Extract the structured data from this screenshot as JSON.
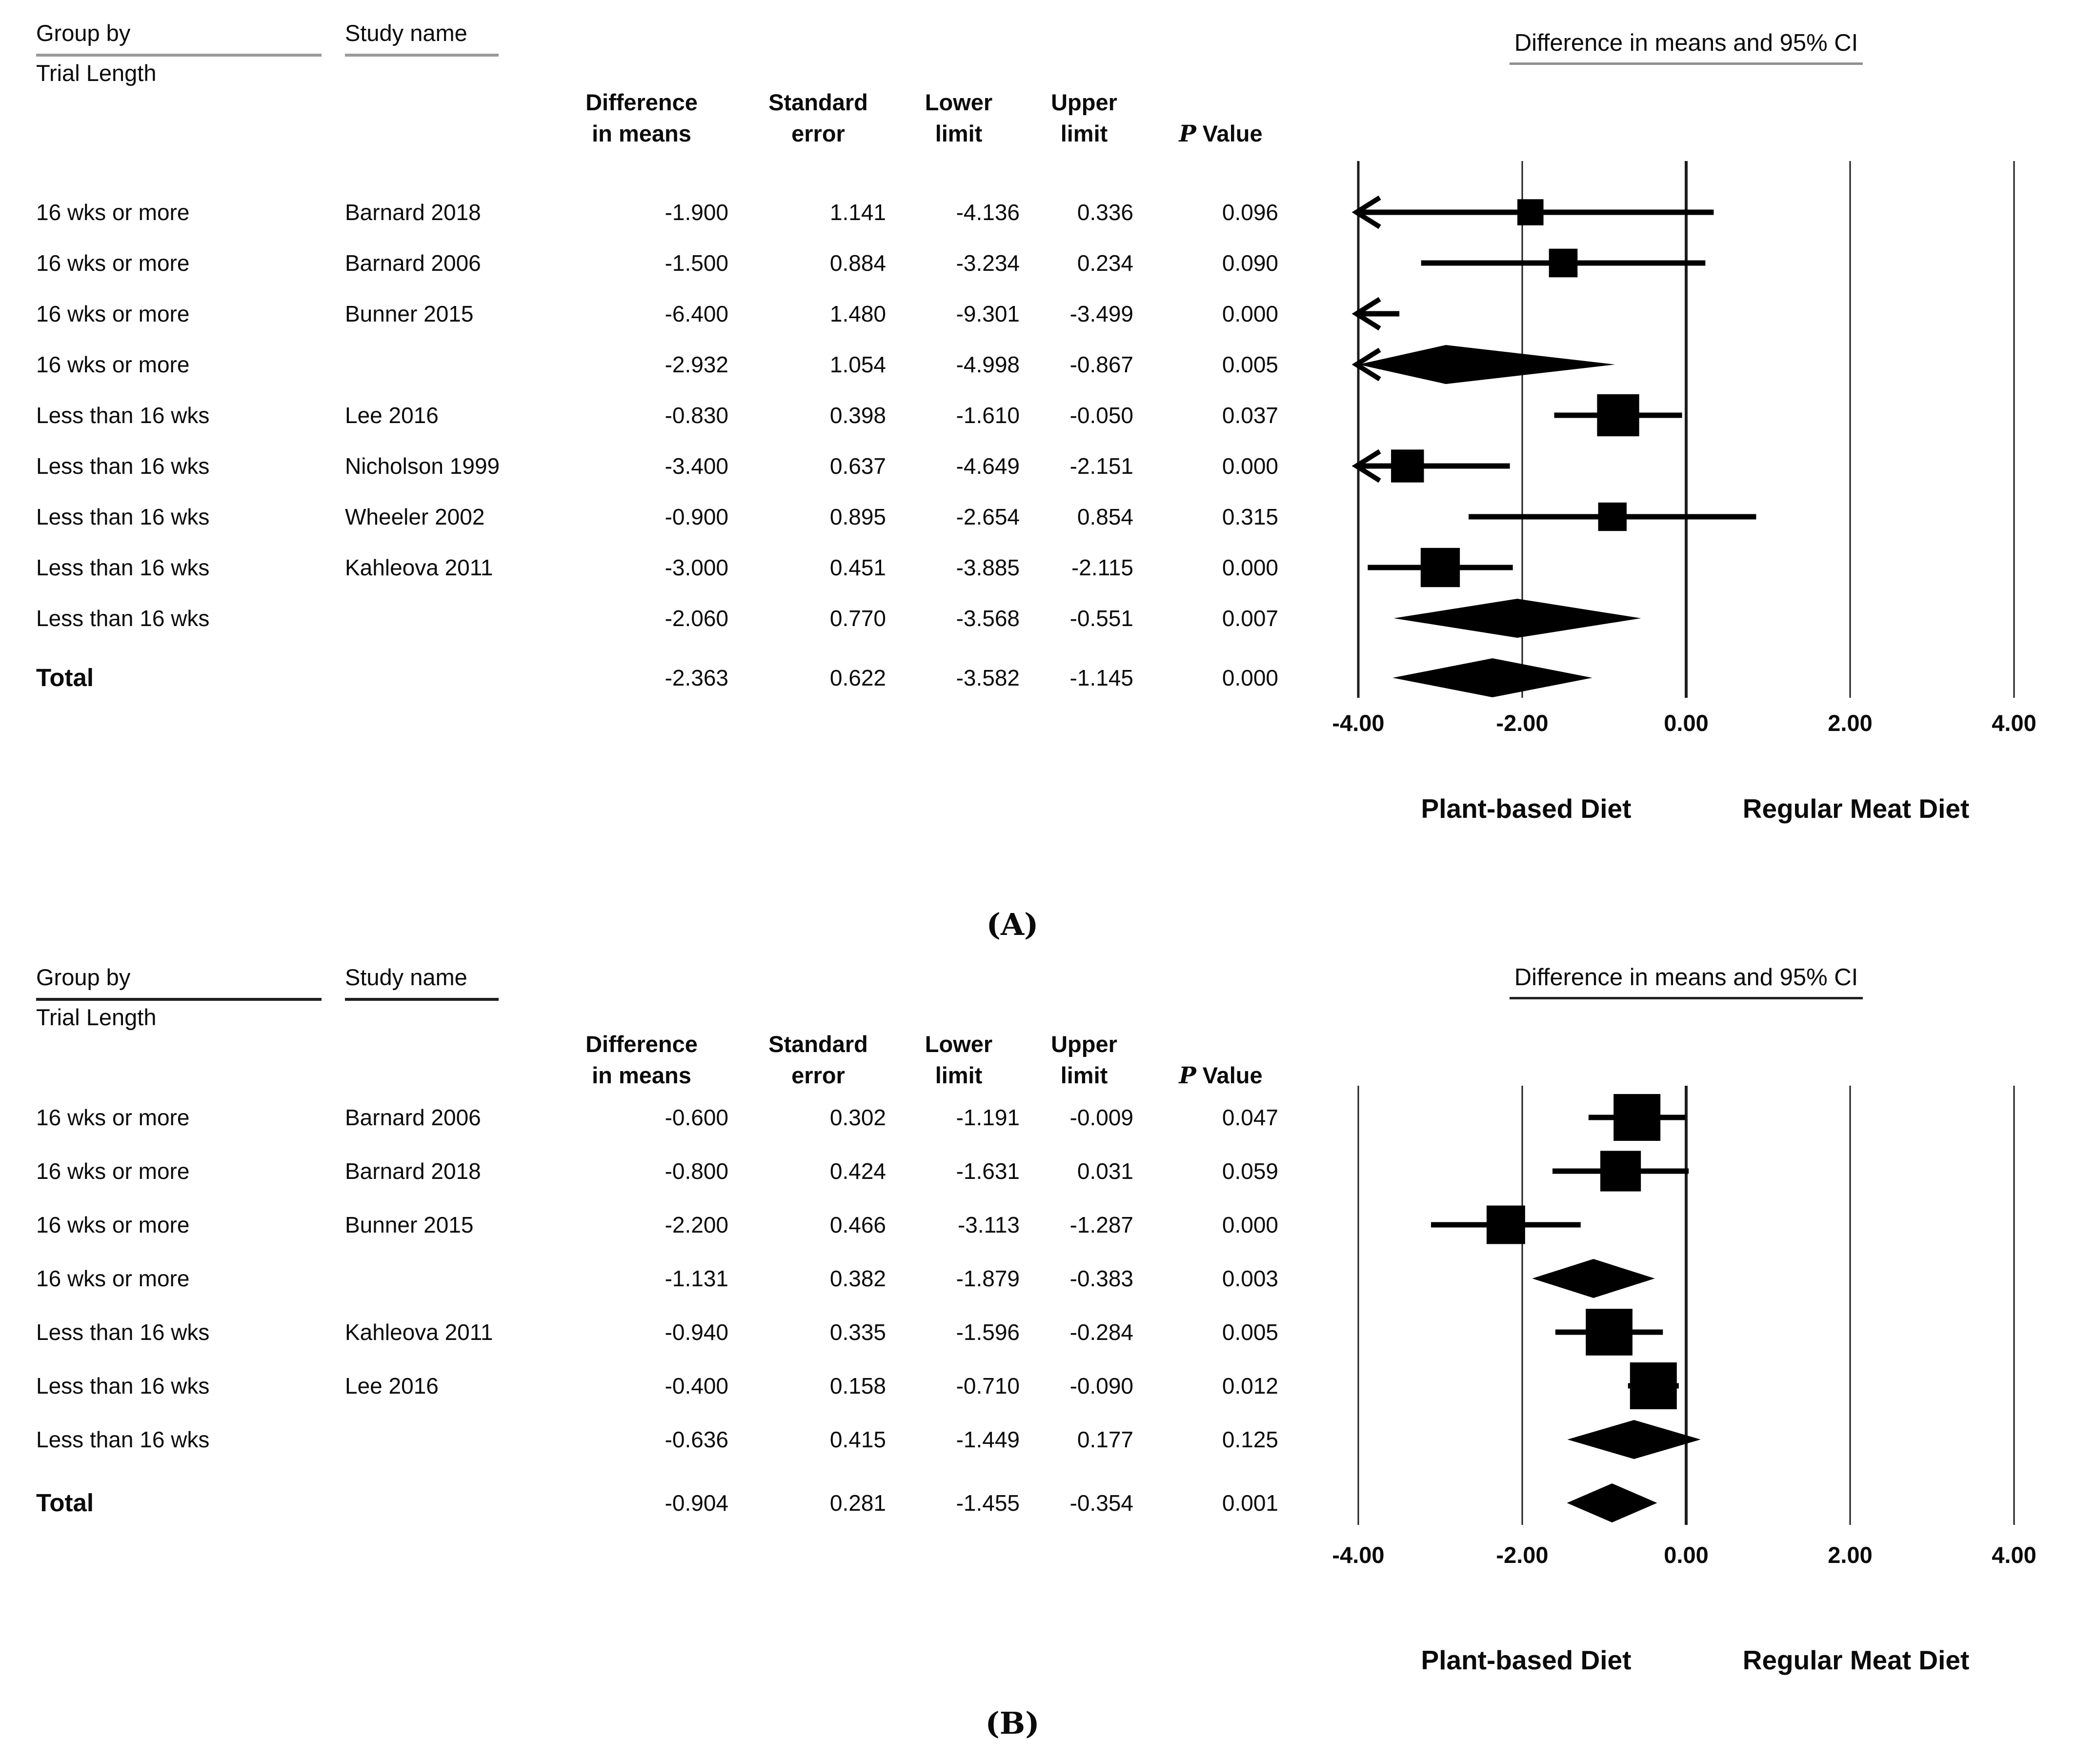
{
  "chart_data": [
    {
      "type": "forest",
      "panel_caption": "(A)",
      "group_header_line1": "Group by",
      "group_header_line2": "Trial Length",
      "study_header": "Study name",
      "value_headers": [
        {
          "line1": "Difference",
          "line2": "in means"
        },
        {
          "line1": "Standard",
          "line2": "error"
        },
        {
          "line1": "Lower",
          "line2": "limit"
        },
        {
          "line1": "Upper",
          "line2": "limit"
        },
        {
          "line1": "",
          "p_symbol": "P",
          "line2": "Value"
        }
      ],
      "plot_title": "Difference in means and 95% CI",
      "x_ticks": [
        "-4.00",
        "-2.00",
        "0.00",
        "2.00",
        "4.00"
      ],
      "x_tick_values": [
        -4,
        -2,
        0,
        2,
        4
      ],
      "x_range": [
        -4,
        4
      ],
      "grid": "vertical-lines",
      "legend_position": "none",
      "direction_labels": {
        "left": "Plant-based Diet",
        "right": "Regular Meat Diet"
      },
      "rows": [
        {
          "group": "16 wks or more",
          "study": "Barnard 2018",
          "kind": "study",
          "diff": "-1.900",
          "se": "1.141",
          "lower": "-4.136",
          "upper": "0.336",
          "p": "0.096"
        },
        {
          "group": "16 wks or more",
          "study": "Barnard 2006",
          "kind": "study",
          "diff": "-1.500",
          "se": "0.884",
          "lower": "-3.234",
          "upper": "0.234",
          "p": "0.090"
        },
        {
          "group": "16 wks or more",
          "study": "Bunner 2015",
          "kind": "study",
          "diff": "-6.400",
          "se": "1.480",
          "lower": "-9.301",
          "upper": "-3.499",
          "p": "0.000"
        },
        {
          "group": "16 wks or more",
          "study": "",
          "kind": "summary",
          "diff": "-2.932",
          "se": "1.054",
          "lower": "-4.998",
          "upper": "-0.867",
          "p": "0.005"
        },
        {
          "group": "Less than 16 wks",
          "study": "Lee 2016",
          "kind": "study",
          "diff": "-0.830",
          "se": "0.398",
          "lower": "-1.610",
          "upper": "-0.050",
          "p": "0.037"
        },
        {
          "group": "Less than 16 wks",
          "study": "Nicholson 1999",
          "kind": "study",
          "diff": "-3.400",
          "se": "0.637",
          "lower": "-4.649",
          "upper": "-2.151",
          "p": "0.000"
        },
        {
          "group": "Less than 16 wks",
          "study": "Wheeler 2002",
          "kind": "study",
          "diff": "-0.900",
          "se": "0.895",
          "lower": "-2.654",
          "upper": "0.854",
          "p": "0.315"
        },
        {
          "group": "Less than 16 wks",
          "study": "Kahleova 2011",
          "kind": "study",
          "diff": "-3.000",
          "se": "0.451",
          "lower": "-3.885",
          "upper": "-2.115",
          "p": "0.000"
        },
        {
          "group": "Less than 16 wks",
          "study": "",
          "kind": "summary",
          "diff": "-2.060",
          "se": "0.770",
          "lower": "-3.568",
          "upper": "-0.551",
          "p": "0.007"
        },
        {
          "group": "Total",
          "study": "",
          "kind": "total",
          "diff": "-2.363",
          "se": "0.622",
          "lower": "-3.582",
          "upper": "-1.145",
          "p": "0.000"
        }
      ]
    },
    {
      "type": "forest",
      "panel_caption": "(B)",
      "group_header_line1": "Group by",
      "group_header_line2": "Trial Length",
      "study_header": "Study name",
      "value_headers": [
        {
          "line1": "Difference",
          "line2": "in means"
        },
        {
          "line1": "Standard",
          "line2": "error"
        },
        {
          "line1": "Lower",
          "line2": "limit"
        },
        {
          "line1": "Upper",
          "line2": "limit"
        },
        {
          "line1": "",
          "p_symbol": "P",
          "line2": "Value"
        }
      ],
      "plot_title": "Difference in means and 95% CI",
      "x_ticks": [
        "-4.00",
        "-2.00",
        "0.00",
        "2.00",
        "4.00"
      ],
      "x_tick_values": [
        -4,
        -2,
        0,
        2,
        4
      ],
      "x_range": [
        -4,
        4
      ],
      "grid": "vertical-lines",
      "legend_position": "none",
      "direction_labels": {
        "left": "Plant-based Diet",
        "right": "Regular Meat Diet"
      },
      "rows": [
        {
          "group": "16 wks or more",
          "study": "Barnard 2006",
          "kind": "study",
          "diff": "-0.600",
          "se": "0.302",
          "lower": "-1.191",
          "upper": "-0.009",
          "p": "0.047"
        },
        {
          "group": "16 wks or more",
          "study": "Barnard 2018",
          "kind": "study",
          "diff": "-0.800",
          "se": "0.424",
          "lower": "-1.631",
          "upper": "0.031",
          "p": "0.059"
        },
        {
          "group": "16 wks or more",
          "study": "Bunner 2015",
          "kind": "study",
          "diff": "-2.200",
          "se": "0.466",
          "lower": "-3.113",
          "upper": "-1.287",
          "p": "0.000"
        },
        {
          "group": "16 wks or more",
          "study": "",
          "kind": "summary",
          "diff": "-1.131",
          "se": "0.382",
          "lower": "-1.879",
          "upper": "-0.383",
          "p": "0.003"
        },
        {
          "group": "Less than 16 wks",
          "study": "Kahleova 2011",
          "kind": "study",
          "diff": "-0.940",
          "se": "0.335",
          "lower": "-1.596",
          "upper": "-0.284",
          "p": "0.005"
        },
        {
          "group": "Less than 16 wks",
          "study": "Lee 2016",
          "kind": "study",
          "diff": "-0.400",
          "se": "0.158",
          "lower": "-0.710",
          "upper": "-0.090",
          "p": "0.012"
        },
        {
          "group": "Less than 16 wks",
          "study": "",
          "kind": "summary",
          "diff": "-0.636",
          "se": "0.415",
          "lower": "-1.449",
          "upper": "0.177",
          "p": "0.125"
        },
        {
          "group": "Total",
          "study": "",
          "kind": "total",
          "diff": "-0.904",
          "se": "0.281",
          "lower": "-1.455",
          "upper": "-0.354",
          "p": "0.001"
        }
      ]
    }
  ]
}
